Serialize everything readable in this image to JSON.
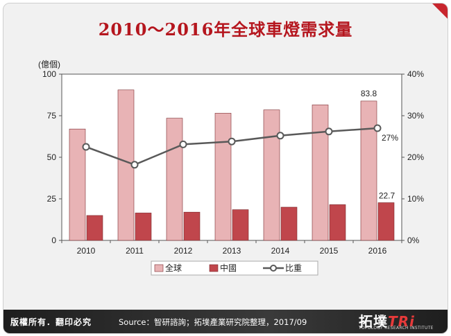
{
  "title": "2010～2016年全球車燈需求量",
  "chart_data": {
    "type": "bar",
    "categories": [
      "2010",
      "2011",
      "2012",
      "2013",
      "2014",
      "2015",
      "2016"
    ],
    "series": [
      {
        "name": "全球",
        "values": [
          67,
          90.5,
          73.5,
          76.5,
          78.5,
          81.5,
          83.8
        ],
        "color": "#e8b3b5"
      },
      {
        "name": "中國",
        "values": [
          15,
          16.5,
          17,
          18.5,
          20,
          21.5,
          22.7
        ],
        "color": "#c0464c"
      },
      {
        "name": "比重",
        "type": "line",
        "axis": "right",
        "values": [
          22.5,
          18.2,
          23.1,
          23.8,
          25.2,
          26.2,
          27
        ],
        "color": "#595959"
      }
    ],
    "yunit": "(億個)",
    "ylim": [
      0,
      100
    ],
    "yticks": [
      "0",
      "25",
      "50",
      "75",
      "100"
    ],
    "y2lim": [
      0,
      40
    ],
    "y2ticks": [
      "0%",
      "10%",
      "20%",
      "30%",
      "40%"
    ],
    "data_labels": {
      "global_2016": "83.8",
      "china_2016": "22.7",
      "share_2016": "27%"
    },
    "legend_position": "bottom",
    "grid": false
  },
  "footer": {
    "left_text": "版權所有．翻印必究",
    "source_text": "Source：智研諮詢；拓墣產業研究院整理，2017/09",
    "logo_text": "拓墣",
    "logo_tri": "TRi",
    "logo_sub": "TOPOLOGY RESEARCH INSTITUTE"
  }
}
